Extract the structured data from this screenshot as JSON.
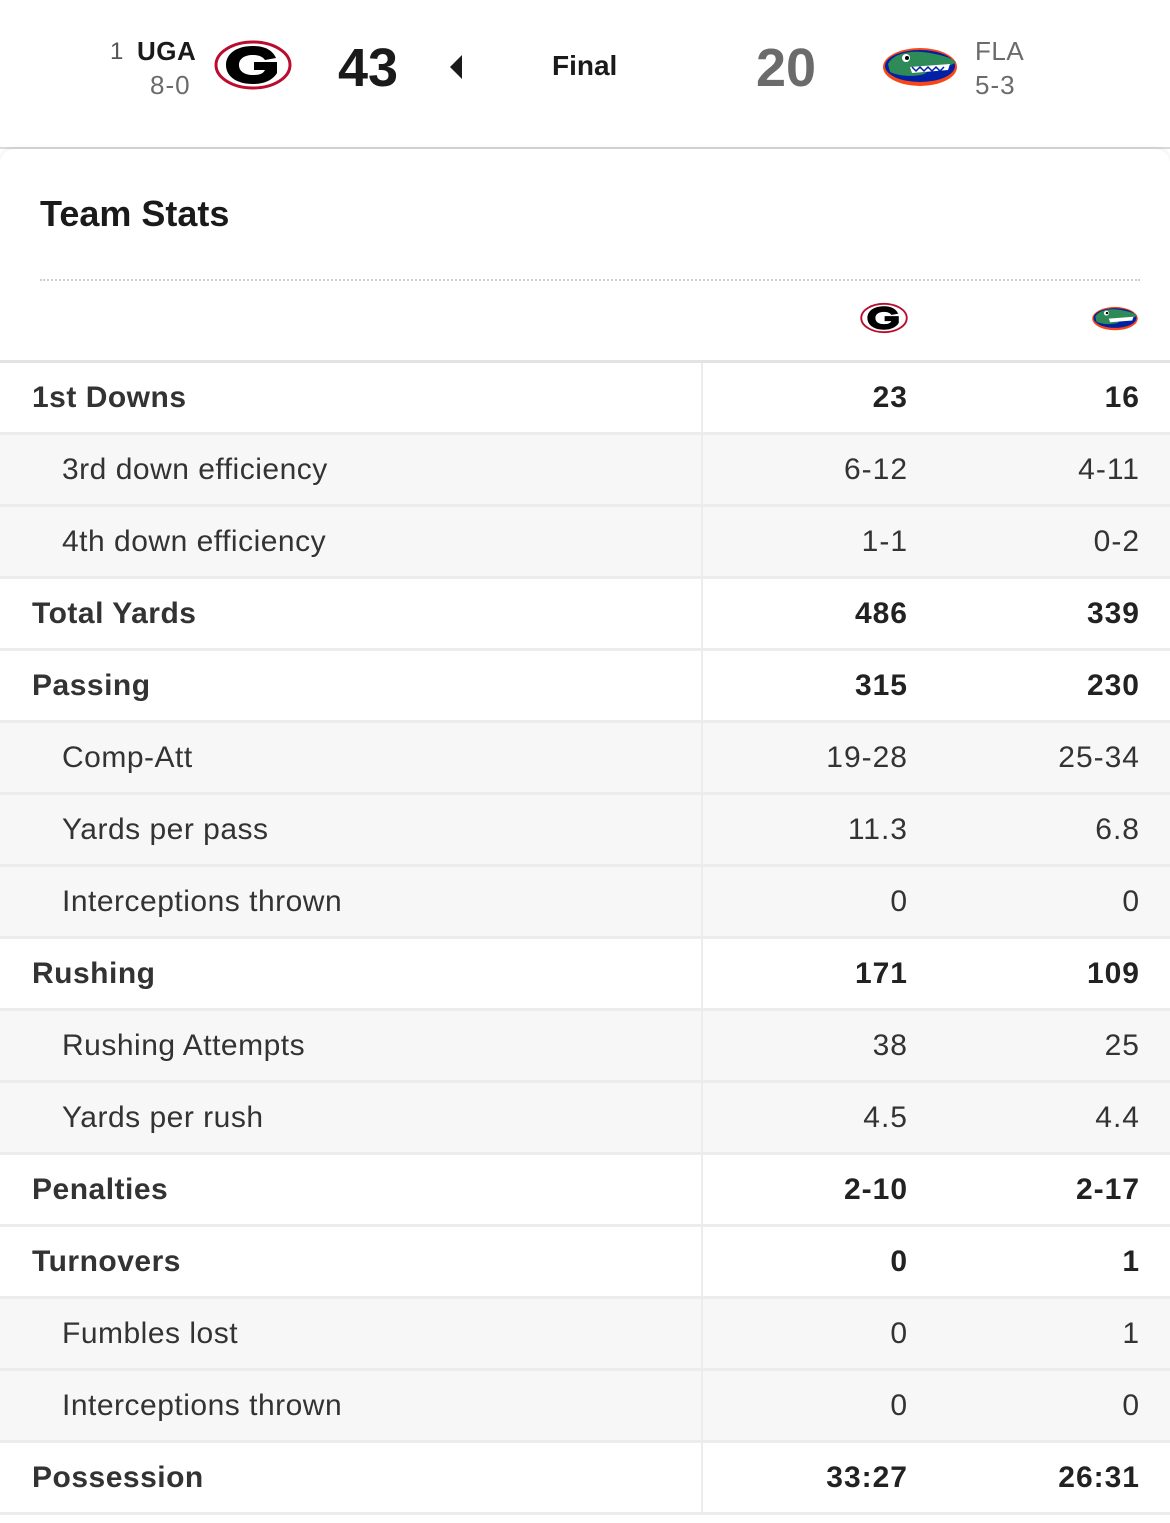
{
  "scoreboard": {
    "home": {
      "rank": "1",
      "abbr": "UGA",
      "record": "8-0",
      "score": "43",
      "logo": "georgia-g-logo"
    },
    "away": {
      "abbr": "FLA",
      "record": "5-3",
      "score": "20",
      "logo": "florida-gator-logo"
    },
    "status": "Final"
  },
  "team_stats": {
    "title": "Team Stats",
    "rows": [
      {
        "label": "1st Downs",
        "home": "23",
        "away": "16",
        "type": "main"
      },
      {
        "label": "3rd down efficiency",
        "home": "6-12",
        "away": "4-11",
        "type": "sub"
      },
      {
        "label": "4th down efficiency",
        "home": "1-1",
        "away": "0-2",
        "type": "sub"
      },
      {
        "label": "Total Yards",
        "home": "486",
        "away": "339",
        "type": "main"
      },
      {
        "label": "Passing",
        "home": "315",
        "away": "230",
        "type": "main"
      },
      {
        "label": "Comp-Att",
        "home": "19-28",
        "away": "25-34",
        "type": "sub"
      },
      {
        "label": "Yards per pass",
        "home": "11.3",
        "away": "6.8",
        "type": "sub"
      },
      {
        "label": "Interceptions thrown",
        "home": "0",
        "away": "0",
        "type": "sub"
      },
      {
        "label": "Rushing",
        "home": "171",
        "away": "109",
        "type": "main"
      },
      {
        "label": "Rushing Attempts",
        "home": "38",
        "away": "25",
        "type": "sub"
      },
      {
        "label": "Yards per rush",
        "home": "4.5",
        "away": "4.4",
        "type": "sub"
      },
      {
        "label": "Penalties",
        "home": "2-10",
        "away": "2-17",
        "type": "main"
      },
      {
        "label": "Turnovers",
        "home": "0",
        "away": "1",
        "type": "main"
      },
      {
        "label": "Fumbles lost",
        "home": "0",
        "away": "1",
        "type": "sub"
      },
      {
        "label": "Interceptions thrown",
        "home": "0",
        "away": "0",
        "type": "sub"
      },
      {
        "label": "Possession",
        "home": "33:27",
        "away": "26:31",
        "type": "main"
      }
    ]
  },
  "colors": {
    "georgia_red": "#BA0C2F",
    "georgia_black": "#000000",
    "florida_blue": "#0021A5",
    "florida_orange": "#FA4616",
    "gator_green": "#2E8B57"
  }
}
